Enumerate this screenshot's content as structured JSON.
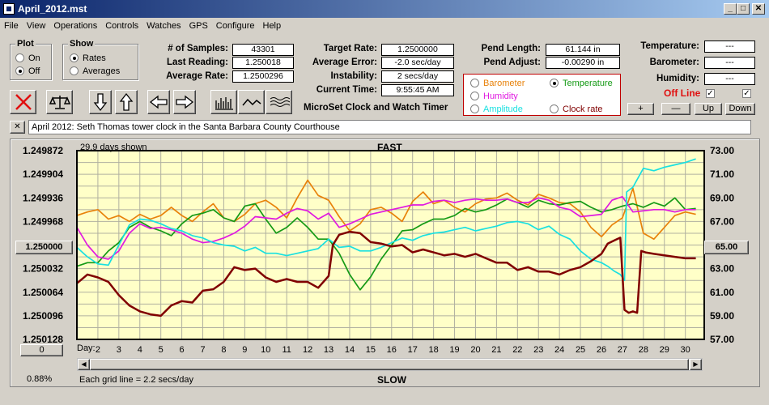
{
  "window": {
    "title": "April_2012.mst"
  },
  "menu": [
    "File",
    "View",
    "Operations",
    "Controls",
    "Watches",
    "GPS",
    "Configure",
    "Help"
  ],
  "plot_group": {
    "title": "Plot",
    "on": "On",
    "off": "Off"
  },
  "show_group": {
    "title": "Show",
    "rates": "Rates",
    "averages": "Averages"
  },
  "stats": {
    "samples_label": "# of Samples:",
    "samples": "43301",
    "last_reading_label": "Last Reading:",
    "last_reading": "1.250018",
    "average_rate_label": "Average Rate:",
    "average_rate": "1.2500296",
    "target_rate_label": "Target Rate:",
    "target_rate": "1.2500000",
    "average_error_label": "Average Error:",
    "average_error": "-2.0 sec/day",
    "instability_label": "Instability:",
    "instability": "2 secs/day",
    "current_time_label": "Current Time:",
    "current_time": "9:55:45 AM",
    "pend_length_label": "Pend Length:",
    "pend_length": "61.144 in",
    "pend_adjust_label": "Pend Adjust:",
    "pend_adjust": "-0.00290 in",
    "temperature_label": "Temperature:",
    "temperature": "---",
    "barometer_label": "Barometer:",
    "barometer": "---",
    "humidity_label": "Humidity:",
    "humidity": "---",
    "offline_label": "Off Line"
  },
  "app_name": "MicroSet Clock and Watch Timer",
  "sensor_radio": {
    "barometer": "Barometer",
    "temperature": "Temperature",
    "humidity": "Humidity",
    "amplitude": "Amplitude",
    "clock_rate": "Clock rate"
  },
  "sensor_buttons": {
    "plus": "+",
    "minus": "—",
    "up": "Up",
    "down": "Down"
  },
  "note": "April 2012: Seth Thomas tower clock in the Santa Barbara County Courthouse",
  "close_note": "✕",
  "chart_labels": {
    "days_shown": "29.9 days shown",
    "fast": "FAST",
    "slow": "SLOW",
    "grid_note": "Each grid line = 2.2 secs/day",
    "day_label": "Day:",
    "left_btn": "1.250000",
    "left_bottom_btn": "0",
    "right_btn": "65.00",
    "pct": "0.88%"
  },
  "colors": {
    "barometer": "#e8820a",
    "temperature": "#159a15",
    "humidity": "#e019e0",
    "amplitude": "#19e0e0",
    "clock_rate": "#800000",
    "plot_bg": "#ffffc8",
    "grid": "#b0b0a0"
  },
  "chart_data": {
    "type": "line",
    "x_label": "Day",
    "x_ticks": [
      2,
      3,
      4,
      5,
      6,
      7,
      8,
      9,
      10,
      11,
      12,
      13,
      14,
      15,
      16,
      17,
      18,
      19,
      20,
      21,
      22,
      23,
      24,
      25,
      26,
      27,
      28,
      29,
      30
    ],
    "xlim": [
      1,
      30.9
    ],
    "left_axis": {
      "ticks": [
        "1.249872",
        "1.249904",
        "1.249936",
        "1.249968",
        "1.250000",
        "1.250032",
        "1.250064",
        "1.250096",
        "1.250128"
      ],
      "ylim": [
        1.249872,
        1.250128
      ],
      "inverted": true
    },
    "right_axis": {
      "ticks": [
        "73.00",
        "71.00",
        "69.00",
        "67.00",
        "65.00",
        "63.00",
        "61.00",
        "59.00",
        "57.00"
      ],
      "ylim": [
        57,
        73
      ]
    },
    "series": [
      {
        "name": "Clock rate",
        "axis": "left",
        "x": [
          1,
          1.5,
          2,
          2.5,
          3,
          3.5,
          4,
          4.5,
          5,
          5.5,
          6,
          6.5,
          7,
          7.5,
          8,
          8.5,
          9,
          9.5,
          10,
          10.5,
          11,
          11.5,
          12,
          12.5,
          13,
          13.2,
          13.5,
          14,
          14.5,
          15,
          15.5,
          16,
          16.5,
          17,
          17.5,
          18,
          18.5,
          19,
          19.5,
          20,
          20.5,
          21,
          21.5,
          22,
          22.5,
          23,
          23.5,
          24,
          24.5,
          25,
          25.5,
          26,
          26.3,
          26.6,
          26.9,
          27.1,
          27.2,
          27.3,
          27.5,
          27.7,
          27.9,
          28.1,
          28.5,
          29,
          29.5,
          30,
          30.5
        ],
        "y": [
          1.250052,
          1.25004,
          1.250044,
          1.25005,
          1.250068,
          1.250082,
          1.25009,
          1.250094,
          1.250096,
          1.250082,
          1.250076,
          1.250078,
          1.250062,
          1.25006,
          1.25005,
          1.25003,
          1.250034,
          1.250032,
          1.250044,
          1.25005,
          1.250046,
          1.25005,
          1.25005,
          1.250058,
          1.250042,
          1.25,
          1.249986,
          1.249982,
          1.249984,
          1.249996,
          1.249998,
          1.250002,
          1.25,
          1.25001,
          1.250006,
          1.25001,
          1.250014,
          1.250012,
          1.250016,
          1.250012,
          1.250018,
          1.250024,
          1.250024,
          1.250034,
          1.25003,
          1.250036,
          1.250036,
          1.25004,
          1.250034,
          1.25003,
          1.250022,
          1.250012,
          1.249998,
          1.249994,
          1.24999,
          1.250088,
          1.25009,
          1.250092,
          1.25009,
          1.250092,
          1.250008,
          1.25001,
          1.250012,
          1.250014,
          1.250016,
          1.250018,
          1.250018
        ]
      },
      {
        "name": "Barometer",
        "axis": "right",
        "x": [
          1,
          1.5,
          2,
          2.5,
          3,
          3.5,
          4,
          4.5,
          5,
          5.5,
          6,
          6.5,
          7,
          7.5,
          8,
          8.5,
          9,
          9.5,
          10,
          10.5,
          11,
          11.5,
          12,
          12.5,
          13,
          13.5,
          14,
          14.5,
          15,
          15.5,
          16,
          16.5,
          17,
          17.5,
          18,
          18.5,
          19,
          19.5,
          20,
          20.5,
          21,
          21.5,
          22,
          22.5,
          23,
          23.5,
          24,
          24.5,
          25,
          25.5,
          26,
          26.5,
          27,
          27.5,
          28,
          28.5,
          29,
          29.5,
          30,
          30.5
        ],
        "y": [
          67.5,
          67.8,
          68,
          67.2,
          67.5,
          67,
          67.6,
          67.2,
          67.5,
          68.2,
          67.5,
          67,
          67.8,
          68.5,
          67.3,
          67,
          67.6,
          68.5,
          68.8,
          68.2,
          67.3,
          69,
          70.5,
          69.2,
          68.8,
          67.4,
          66.2,
          66.8,
          68,
          68.2,
          67.7,
          67,
          68.7,
          69.5,
          68.5,
          68.8,
          68.2,
          67.8,
          68.5,
          68.9,
          69,
          69.4,
          68.8,
          68.4,
          69.3,
          69,
          68.6,
          68.5,
          67.8,
          66.5,
          65.7,
          66.7,
          67.3,
          69.8,
          66,
          65.5,
          66.5,
          67.5,
          67.8,
          67.6
        ]
      },
      {
        "name": "Temperature",
        "axis": "right",
        "x": [
          1,
          1.5,
          2,
          2.5,
          3,
          3.5,
          4,
          4.5,
          5,
          5.5,
          6,
          6.5,
          7,
          7.5,
          8,
          8.5,
          9,
          9.5,
          10,
          10.5,
          11,
          11.5,
          12,
          12.5,
          13,
          13.5,
          14,
          14.5,
          15,
          15.5,
          16,
          16.5,
          17,
          17.5,
          18,
          18.5,
          19,
          19.5,
          20,
          20.5,
          21,
          21.5,
          22,
          22.5,
          23,
          23.5,
          24,
          24.5,
          25,
          25.5,
          26,
          26.5,
          27,
          27.5,
          28,
          28.5,
          29,
          29.5,
          30,
          30.5
        ],
        "y": [
          63.2,
          63.5,
          63.5,
          64.5,
          65.2,
          66.5,
          67,
          66.5,
          66.2,
          65.8,
          66.8,
          67.5,
          67.7,
          68,
          67.3,
          67,
          68.3,
          68.5,
          67.2,
          66,
          66.5,
          67.3,
          66.5,
          65.5,
          65.5,
          64.3,
          62.5,
          61.2,
          62.3,
          63.8,
          65,
          66.2,
          66.3,
          66.8,
          67.2,
          67.2,
          67.5,
          68.1,
          67.8,
          68,
          68.4,
          68.9,
          68.6,
          68.2,
          68.8,
          68.5,
          68.4,
          68.6,
          68.7,
          68.2,
          67.8,
          68,
          68.3,
          68.5,
          68.2,
          68.6,
          68.3,
          69,
          68,
          68.1
        ]
      },
      {
        "name": "Humidity",
        "axis": "right",
        "x": [
          1,
          1.5,
          2,
          2.5,
          3,
          3.5,
          4,
          4.5,
          5,
          5.5,
          6,
          6.5,
          7,
          7.5,
          8,
          8.5,
          9,
          9.5,
          10,
          10.5,
          11,
          11.5,
          12,
          12.5,
          13,
          13.5,
          14,
          14.5,
          15,
          15.5,
          16,
          16.5,
          17,
          17.5,
          18,
          18.5,
          19,
          19.5,
          20,
          20.5,
          21,
          21.5,
          22,
          22.5,
          23,
          23.5,
          24,
          24.5,
          25,
          25.5,
          26,
          26.5,
          27,
          27.5,
          28,
          28.5,
          29,
          29.5,
          30,
          30.5
        ],
        "y": [
          66.5,
          65,
          64,
          63.8,
          64.5,
          66,
          66.8,
          66.4,
          66.5,
          66.3,
          66,
          65.5,
          65.2,
          65.3,
          65.6,
          66,
          66.6,
          67.4,
          67.3,
          67.2,
          67.7,
          68.1,
          67.9,
          67.2,
          67.7,
          66.5,
          66.8,
          67.2,
          67.6,
          67.8,
          68,
          68.2,
          68.4,
          68.4,
          68.7,
          68.8,
          68.6,
          68.8,
          68.9,
          68.8,
          68.8,
          68.9,
          68.6,
          68.6,
          69,
          68.8,
          68.2,
          68,
          67.4,
          67.5,
          67.6,
          68.8,
          69.1,
          67.8,
          67.9,
          68,
          68,
          67.8,
          68,
          68
        ]
      },
      {
        "name": "Amplitude",
        "axis": "right",
        "x": [
          1,
          1.5,
          2,
          2.5,
          3,
          3.5,
          4,
          4.5,
          5,
          5.5,
          6,
          6.5,
          7,
          7.5,
          8,
          8.5,
          9,
          9.5,
          10,
          10.5,
          11,
          11.5,
          12,
          12.5,
          13,
          13.5,
          14,
          14.5,
          15,
          15.5,
          16,
          16.5,
          17,
          17.5,
          18,
          18.5,
          19,
          19.5,
          20,
          20.5,
          21,
          21.5,
          22,
          22.5,
          23,
          23.5,
          24,
          24.5,
          25,
          25.5,
          26,
          26.3,
          26.6,
          26.9,
          27.1,
          27.2,
          27.5,
          28,
          28.5,
          29,
          29.5,
          30,
          30.5
        ],
        "y": [
          64.8,
          64,
          63.4,
          63.3,
          65,
          66.7,
          67.2,
          67.1,
          66.8,
          66.4,
          66.2,
          65.8,
          65.6,
          65.2,
          65,
          64.9,
          64.5,
          64.8,
          64.3,
          64.3,
          64.1,
          64.3,
          64.5,
          64.7,
          65.5,
          64.8,
          64.9,
          64.5,
          64.5,
          64.8,
          65.2,
          65.6,
          65.4,
          65.8,
          66,
          66.1,
          66.3,
          66.5,
          66.2,
          66.4,
          66.6,
          66.9,
          67,
          66.8,
          66.3,
          66.6,
          65.9,
          65.5,
          64.5,
          63.8,
          63.5,
          63.2,
          62.8,
          62.5,
          62,
          69.5,
          69.9,
          71.5,
          71.3,
          71.6,
          71.8,
          72,
          72.3
        ]
      }
    ]
  }
}
